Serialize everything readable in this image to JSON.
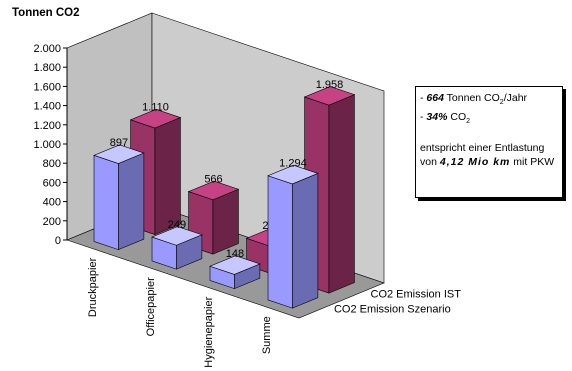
{
  "chart_data": {
    "type": "bar3d",
    "title": "Tonnen CO2",
    "categories": [
      "Druckpapier",
      "Officepapier",
      "Hygienepapier",
      "Summe"
    ],
    "series": [
      {
        "name": "CO2 Emission IST",
        "color": "#993366",
        "values": [
          1110,
          566,
          282,
          1958
        ],
        "value_labels": [
          "1.110",
          "566",
          "282",
          "1.958"
        ]
      },
      {
        "name": "CO2 Emission Szenario",
        "color": "#9999ff",
        "values": [
          897,
          249,
          148,
          1294
        ],
        "value_labels": [
          "897",
          "249",
          "148",
          "1.294"
        ]
      }
    ],
    "ylim": [
      0,
      2000
    ],
    "yticks": [
      0,
      200,
      400,
      600,
      800,
      {
        "value": 1000,
        "label": "1.000"
      },
      {
        "value": 1200,
        "label": "1.200"
      },
      {
        "value": 1400,
        "label": "1.400"
      },
      {
        "value": 1600,
        "label": "1.600"
      },
      {
        "value": 1800,
        "label": "1.800"
      },
      {
        "value": 2000,
        "label": "2.000"
      }
    ],
    "grid": false
  },
  "annotation": {
    "l1_dash": "- ",
    "l1_value": "664",
    "l1_text": " Tonnen CO",
    "l1_sub": "2",
    "l1_end": "/Jahr",
    "l2_dash": "- ",
    "l2_value": "34%",
    "l2_text": " CO",
    "l2_sub": "2",
    "l3": "entspricht einer Entlastung",
    "l4_start": "von ",
    "l4_value": "4,12 Mio km",
    "l4_end": " mit PKW"
  }
}
